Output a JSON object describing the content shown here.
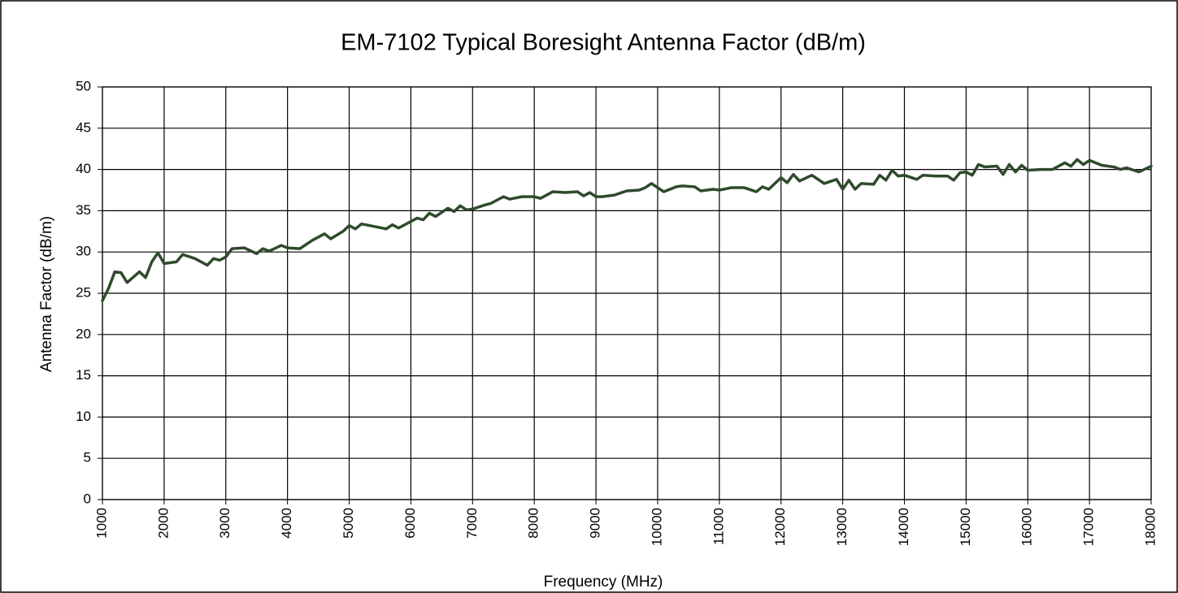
{
  "chart_data": {
    "type": "line",
    "title": "EM-7102 Typical Boresight Antenna Factor (dB/m)",
    "x_label": "Frequency (MHz)",
    "y_label": "Antenna Factor (dB/m)",
    "x": [
      1000,
      1100,
      1200,
      1300,
      1400,
      1600,
      1700,
      1800,
      1900,
      2000,
      2200,
      2300,
      2500,
      2700,
      2800,
      2900,
      3000,
      3100,
      3300,
      3500,
      3600,
      3700,
      3900,
      4000,
      4200,
      4400,
      4600,
      4700,
      4900,
      5000,
      5100,
      5200,
      5400,
      5600,
      5700,
      5800,
      6000,
      6100,
      6200,
      6300,
      6400,
      6600,
      6700,
      6800,
      6900,
      7000,
      7200,
      7300,
      7500,
      7600,
      7800,
      8000,
      8100,
      8300,
      8500,
      8700,
      8800,
      8900,
      9000,
      9100,
      9300,
      9500,
      9700,
      9800,
      9900,
      10000,
      10100,
      10300,
      10400,
      10600,
      10700,
      10900,
      11000,
      11200,
      11400,
      11600,
      11700,
      11800,
      12000,
      12100,
      12200,
      12300,
      12500,
      12700,
      12900,
      13000,
      13100,
      13200,
      13300,
      13500,
      13600,
      13700,
      13800,
      13900,
      14000,
      14200,
      14300,
      14500,
      14700,
      14800,
      14900,
      15000,
      15100,
      15200,
      15300,
      15500,
      15600,
      15700,
      15800,
      15900,
      16000,
      16200,
      16400,
      16600,
      16700,
      16800,
      16900,
      17000,
      17200,
      17400,
      17500,
      17600,
      17800,
      18000
    ],
    "values": [
      24.1,
      25.6,
      27.6,
      27.5,
      26.3,
      27.6,
      26.9,
      28.8,
      29.9,
      28.6,
      28.8,
      29.7,
      29.2,
      28.4,
      29.2,
      29.0,
      29.4,
      30.4,
      30.5,
      29.8,
      30.4,
      30.1,
      30.8,
      30.5,
      30.4,
      31.4,
      32.2,
      31.6,
      32.5,
      33.2,
      32.8,
      33.4,
      33.1,
      32.8,
      33.3,
      32.9,
      33.7,
      34.1,
      33.9,
      34.7,
      34.3,
      35.3,
      34.9,
      35.6,
      35.1,
      35.2,
      35.7,
      35.9,
      36.7,
      36.4,
      36.7,
      36.7,
      36.5,
      37.3,
      37.2,
      37.3,
      36.8,
      37.2,
      36.7,
      36.7,
      36.9,
      37.4,
      37.5,
      37.8,
      38.3,
      37.8,
      37.3,
      37.9,
      38.0,
      37.9,
      37.4,
      37.6,
      37.5,
      37.8,
      37.8,
      37.3,
      37.9,
      37.6,
      39.0,
      38.4,
      39.4,
      38.6,
      39.3,
      38.3,
      38.8,
      37.6,
      38.7,
      37.6,
      38.3,
      38.2,
      39.3,
      38.7,
      39.9,
      39.2,
      39.3,
      38.8,
      39.3,
      39.2,
      39.2,
      38.7,
      39.6,
      39.7,
      39.3,
      40.6,
      40.3,
      40.4,
      39.4,
      40.6,
      39.7,
      40.5,
      39.9,
      40.0,
      40.0,
      40.8,
      40.4,
      41.2,
      40.6,
      41.1,
      40.5,
      40.3,
      40.0,
      40.2,
      39.7,
      40.4
    ],
    "color": "#2f4a2c",
    "xlim": [
      1000,
      18000
    ],
    "xticks": [
      1000,
      2000,
      3000,
      4000,
      5000,
      6000,
      7000,
      8000,
      9000,
      10000,
      11000,
      12000,
      13000,
      14000,
      15000,
      16000,
      17000,
      18000
    ],
    "ylim": [
      0,
      50
    ],
    "yticks": [
      0,
      5,
      10,
      15,
      20,
      25,
      30,
      35,
      40,
      45,
      50
    ],
    "grid": true
  }
}
